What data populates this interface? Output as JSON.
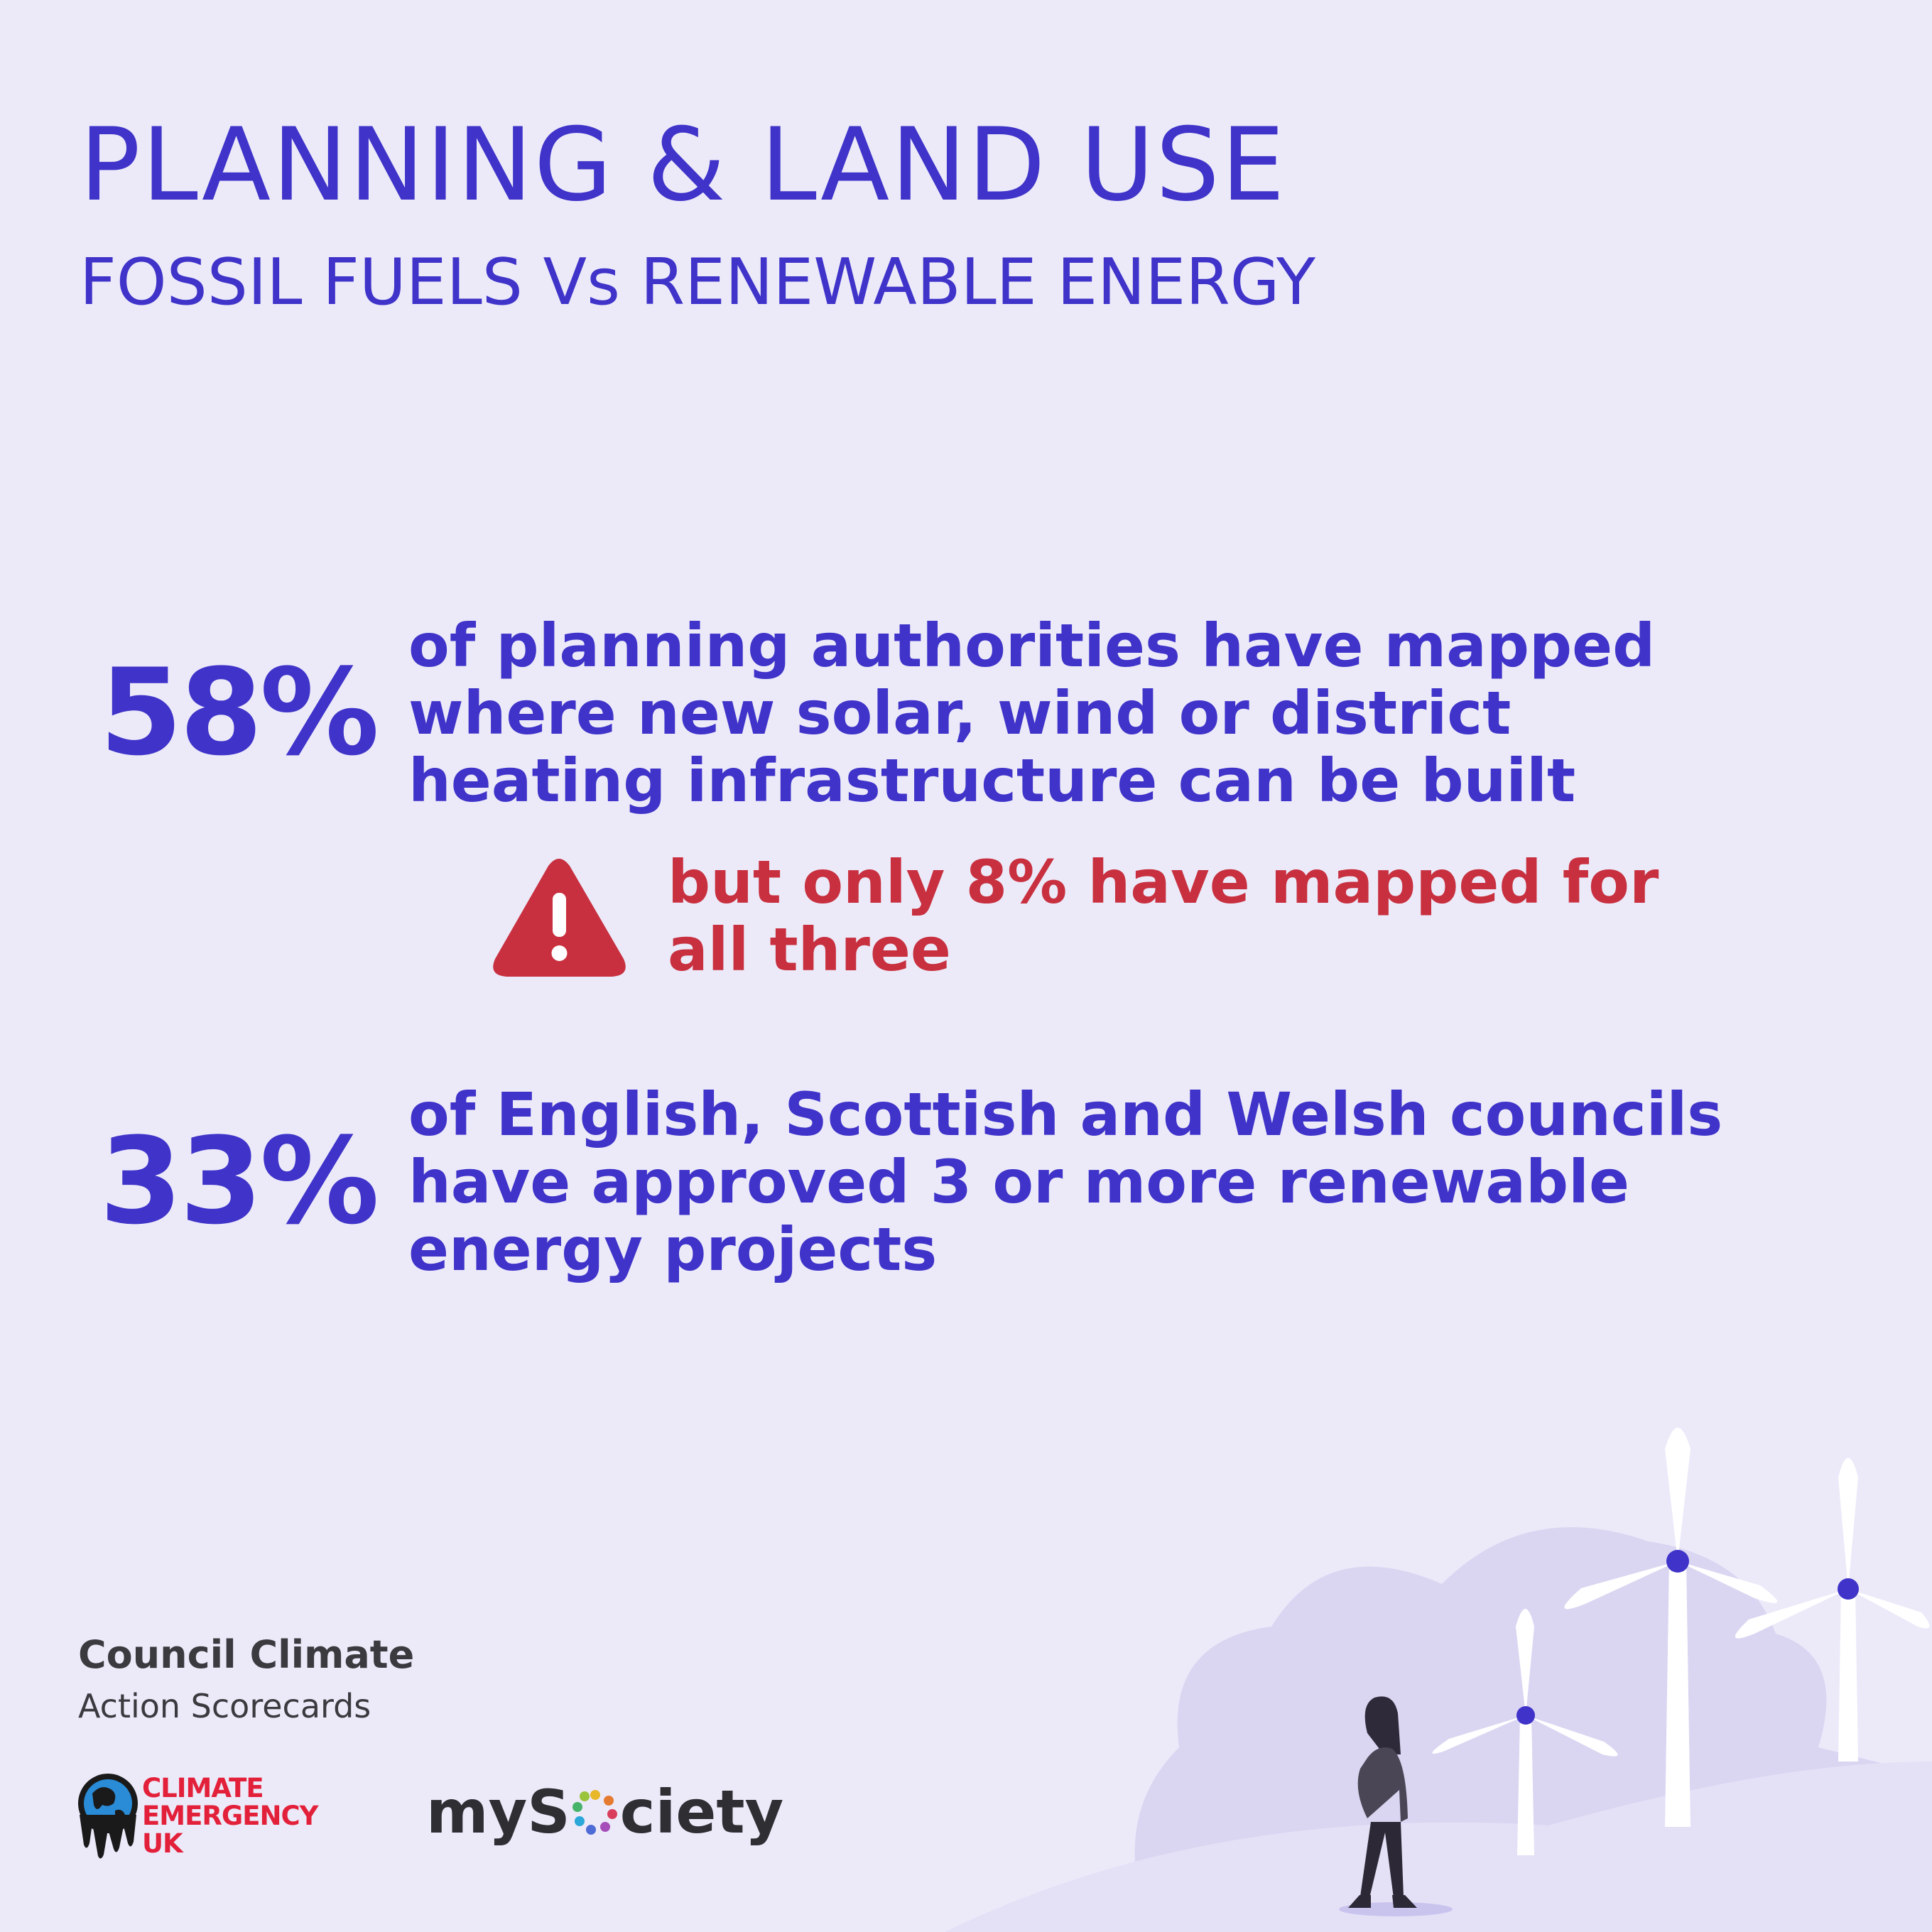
{
  "header": {
    "title": "PLANNING & LAND USE",
    "subtitle": "FOSSIL FUELS Vs RENEWABLE ENERGY"
  },
  "stats": [
    {
      "percent": "58%",
      "text": "of planning authorities have mapped\nwhere new solar, wind or district\nheating infrastructure can be built"
    },
    {
      "percent": "33%",
      "text": "of English, Scottish and Welsh councils\nhave approved 3 or more renewable\nenergy projects"
    }
  ],
  "warning": {
    "icon": "warning-triangle-icon",
    "text": "but only 8% have mapped for\nall three"
  },
  "footer": {
    "brand_line1": "Council Climate",
    "brand_line2": "Action Scorecards",
    "ceuk_logo_text": "CLIMATE\nEMERGENCY\nUK",
    "mysociety_prefix": "myS",
    "mysociety_suffix": "ciety"
  },
  "colors": {
    "background": "#ECEAF9",
    "primary": "#3F33C9",
    "warning": "#C8303F",
    "ceuk_red": "#E3203A"
  }
}
